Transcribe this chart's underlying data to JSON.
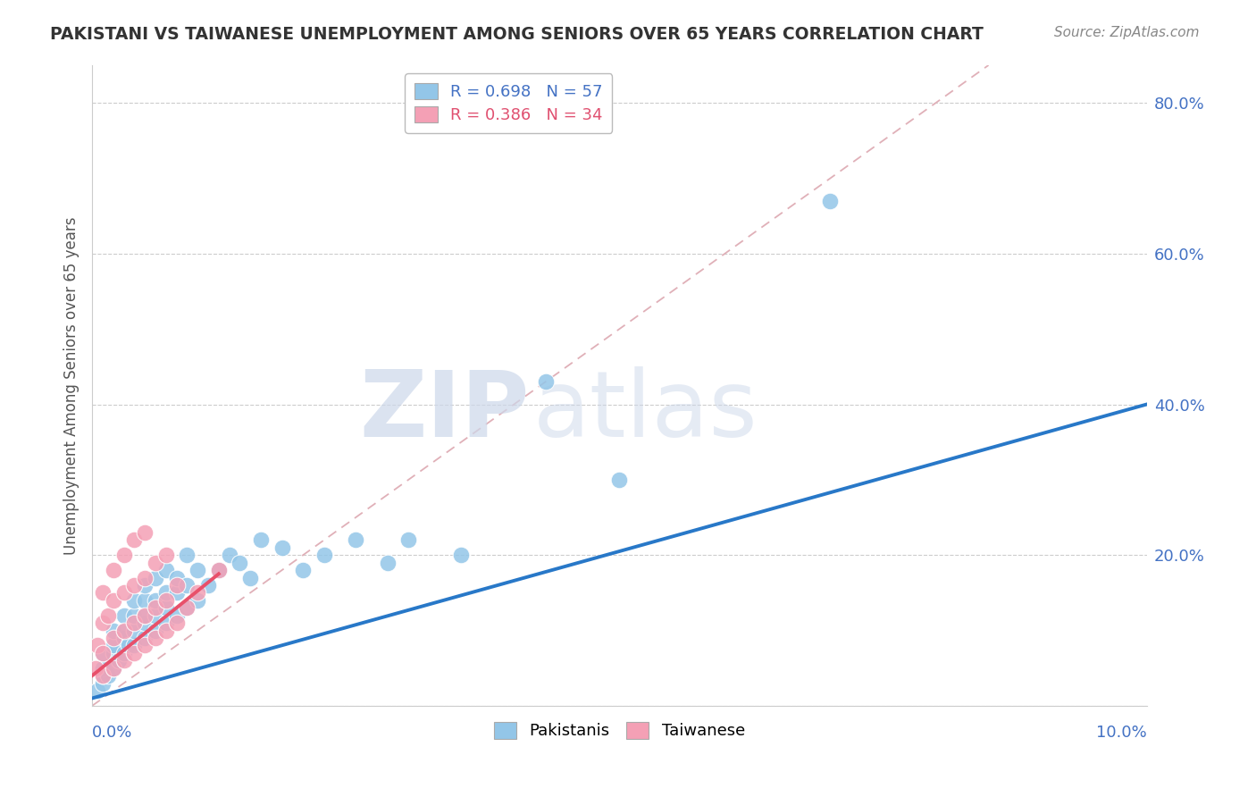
{
  "title": "PAKISTANI VS TAIWANESE UNEMPLOYMENT AMONG SENIORS OVER 65 YEARS CORRELATION CHART",
  "source": "Source: ZipAtlas.com",
  "ylabel": "Unemployment Among Seniors over 65 years",
  "xlim": [
    0.0,
    0.1
  ],
  "ylim": [
    0.0,
    0.85
  ],
  "ytick_vals": [
    0.0,
    0.2,
    0.4,
    0.6,
    0.8
  ],
  "ytick_labels": [
    "",
    "20.0%",
    "40.0%",
    "60.0%",
    "80.0%"
  ],
  "legend_R1": "R = 0.698",
  "legend_N1": "N = 57",
  "legend_R2": "R = 0.386",
  "legend_N2": "N = 34",
  "legend_label1": "Pakistanis",
  "legend_label2": "Taiwanese",
  "blue_dot_color": "#93c6e8",
  "pink_dot_color": "#f4a0b5",
  "blue_line_color": "#2878c8",
  "pink_line_color": "#e8506a",
  "ref_line_color": "#e0b0b8",
  "watermark_color": "#cdd8ea",
  "background_color": "#ffffff",
  "title_color": "#333333",
  "source_color": "#888888",
  "tick_color": "#4472c4",
  "ylabel_color": "#555555",
  "legend_blue_text": "#4472c4",
  "legend_pink_text": "#e05070",
  "pakistani_x": [
    0.0005,
    0.001,
    0.001,
    0.001,
    0.001,
    0.0015,
    0.002,
    0.002,
    0.002,
    0.002,
    0.0025,
    0.003,
    0.003,
    0.003,
    0.003,
    0.0035,
    0.004,
    0.004,
    0.004,
    0.004,
    0.005,
    0.005,
    0.005,
    0.005,
    0.005,
    0.006,
    0.006,
    0.006,
    0.006,
    0.007,
    0.007,
    0.007,
    0.007,
    0.008,
    0.008,
    0.008,
    0.009,
    0.009,
    0.009,
    0.01,
    0.01,
    0.011,
    0.012,
    0.013,
    0.014,
    0.015,
    0.016,
    0.018,
    0.02,
    0.022,
    0.025,
    0.028,
    0.03,
    0.035,
    0.043,
    0.05,
    0.07
  ],
  "pakistani_y": [
    0.02,
    0.03,
    0.04,
    0.05,
    0.07,
    0.04,
    0.05,
    0.07,
    0.08,
    0.1,
    0.06,
    0.07,
    0.09,
    0.1,
    0.12,
    0.08,
    0.08,
    0.1,
    0.12,
    0.14,
    0.09,
    0.11,
    0.12,
    0.14,
    0.16,
    0.1,
    0.12,
    0.14,
    0.17,
    0.11,
    0.13,
    0.15,
    0.18,
    0.12,
    0.15,
    0.17,
    0.13,
    0.16,
    0.2,
    0.14,
    0.18,
    0.16,
    0.18,
    0.2,
    0.19,
    0.17,
    0.22,
    0.21,
    0.18,
    0.2,
    0.22,
    0.19,
    0.22,
    0.2,
    0.43,
    0.3,
    0.67
  ],
  "taiwanese_x": [
    0.0003,
    0.0005,
    0.001,
    0.001,
    0.001,
    0.001,
    0.0015,
    0.002,
    0.002,
    0.002,
    0.002,
    0.003,
    0.003,
    0.003,
    0.003,
    0.004,
    0.004,
    0.004,
    0.004,
    0.005,
    0.005,
    0.005,
    0.005,
    0.006,
    0.006,
    0.006,
    0.007,
    0.007,
    0.007,
    0.008,
    0.008,
    0.009,
    0.01,
    0.012
  ],
  "taiwanese_y": [
    0.05,
    0.08,
    0.04,
    0.07,
    0.11,
    0.15,
    0.12,
    0.05,
    0.09,
    0.14,
    0.18,
    0.06,
    0.1,
    0.15,
    0.2,
    0.07,
    0.11,
    0.16,
    0.22,
    0.08,
    0.12,
    0.17,
    0.23,
    0.09,
    0.13,
    0.19,
    0.1,
    0.14,
    0.2,
    0.11,
    0.16,
    0.13,
    0.15,
    0.18
  ],
  "pak_line_x0": 0.0,
  "pak_line_y0": 0.01,
  "pak_line_x1": 0.1,
  "pak_line_y1": 0.4,
  "tai_line_x0": 0.0,
  "tai_line_y0": 0.04,
  "tai_line_x1": 0.012,
  "tai_line_y1": 0.175,
  "ref_line_x0": 0.0,
  "ref_line_y0": 0.0,
  "ref_line_x1": 0.085,
  "ref_line_y1": 0.85
}
